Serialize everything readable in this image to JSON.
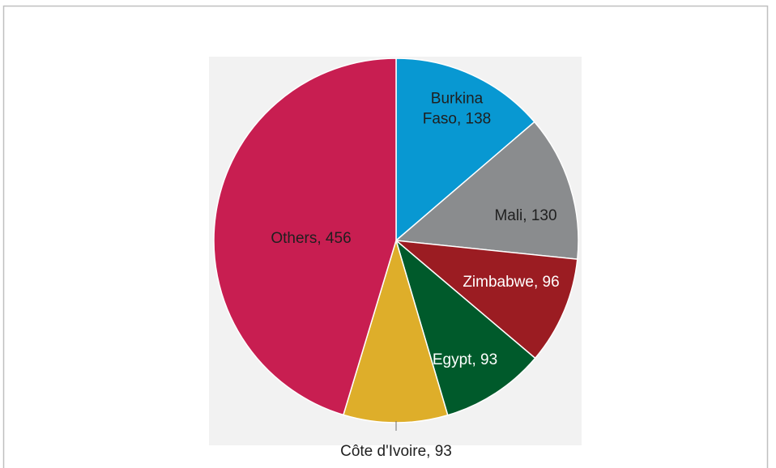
{
  "chart_data": {
    "type": "pie",
    "title": "",
    "slices": [
      {
        "label": "Burkina Faso",
        "value": 138,
        "color": "#0898d2",
        "label_lines": [
          "Burkina",
          "Faso, 138"
        ],
        "text_color": "#1f1f1f"
      },
      {
        "label": "Mali",
        "value": 130,
        "color": "#8a8c8e",
        "label_lines": [
          "Mali, 130"
        ],
        "text_color": "#1f1f1f"
      },
      {
        "label": "Zimbabwe",
        "value": 96,
        "color": "#9b1c22",
        "label_lines": [
          "Zimbabwe, 96"
        ],
        "text_color": "#ffffff"
      },
      {
        "label": "Egypt",
        "value": 93,
        "color": "#005a2b",
        "label_lines": [
          "Egypt, 93"
        ],
        "text_color": "#ffffff"
      },
      {
        "label": "Côte d'Ivoire",
        "value": 93,
        "color": "#deae2a",
        "label_lines": [
          "Côte d'Ivoire, 93"
        ],
        "text_color": "#1f1f1f"
      },
      {
        "label": "Others",
        "value": 456,
        "color": "#c81e51",
        "label_lines": [
          "Others, 456"
        ],
        "text_color": "#1f1f1f"
      }
    ]
  },
  "colors": {
    "border": "#bfbfbf",
    "plot_background": "#f2f2f2",
    "leader_line": "#6d6d6d"
  }
}
